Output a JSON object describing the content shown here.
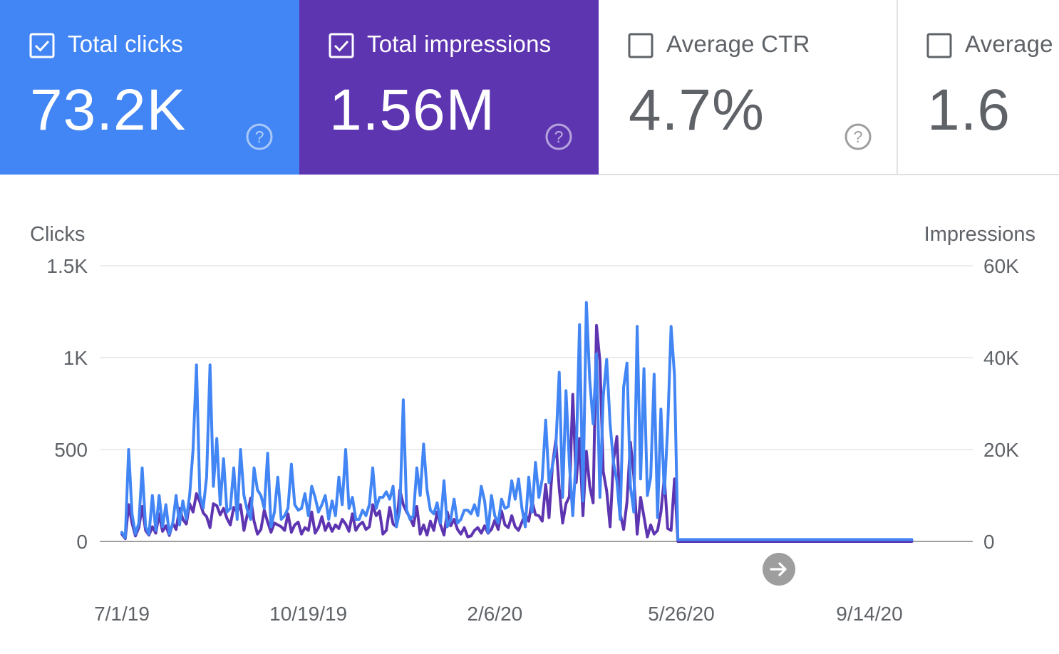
{
  "cards": [
    {
      "label": "Total clicks",
      "value": "73.2K",
      "checked": true,
      "color": "#4285f4",
      "icon": "help-circle-icon"
    },
    {
      "label": "Total impressions",
      "value": "1.56M",
      "checked": true,
      "color": "#5e35b1",
      "icon": "help-circle-icon"
    },
    {
      "label": "Average CTR",
      "value": "4.7%",
      "checked": false,
      "color": "#ffffff",
      "icon": "help-circle-icon"
    },
    {
      "label": "Average",
      "value": "1.6",
      "checked": false,
      "color": "#ffffff"
    }
  ],
  "chart_data": {
    "type": "line",
    "left_axis": {
      "label": "Clicks",
      "ticks": [
        "0",
        "500",
        "1K",
        "1.5K"
      ],
      "tick_values": [
        0,
        500,
        1000,
        1500
      ],
      "ylim": [
        0,
        1500
      ]
    },
    "right_axis": {
      "label": "Impressions",
      "ticks": [
        "0",
        "20K",
        "40K",
        "60K"
      ],
      "tick_values": [
        0,
        20000,
        40000,
        60000
      ],
      "ylim": [
        0,
        60000
      ]
    },
    "x_ticks": [
      "7/1/19",
      "10/19/19",
      "2/6/20",
      "5/26/20",
      "9/14/20"
    ],
    "x_tick_dates": [
      "2019-07-01",
      "2019-10-19",
      "2020-02-06",
      "2020-05-26",
      "2020-09-14"
    ],
    "xlim": [
      "2019-07-01",
      "2020-11-14"
    ],
    "grid": true,
    "series": [
      {
        "axis": "right",
        "color": "#5e35b1",
        "step_days": 2,
        "start": "2019-07-01",
        "values": [
          1600,
          600,
          8000,
          4000,
          1200,
          3000,
          7600,
          2400,
          1400,
          3200,
          1800,
          6000,
          2200,
          3400,
          1300,
          4000,
          2600,
          7200,
          4800,
          3800,
          8200,
          6400,
          10400,
          8600,
          6200,
          5400,
          3000,
          8200,
          7800,
          5800,
          7200,
          5000,
          3600,
          7400,
          6400,
          8000,
          2400,
          5800,
          9400,
          4400,
          1600,
          2600,
          6800,
          4200,
          2000,
          4000,
          3600,
          3200,
          2400,
          6000,
          2000,
          3600,
          4200,
          1600,
          3000,
          2400,
          6400,
          1800,
          3000,
          5400,
          2400,
          4000,
          2200,
          3600,
          2800,
          4800,
          3800,
          2200,
          6000,
          2400,
          3600,
          4200,
          2600,
          3200,
          8000,
          5600,
          6600,
          1600,
          2400,
          7400,
          3800,
          3200,
          11200,
          8000,
          6400,
          5200,
          3400,
          7600,
          1600,
          3600,
          1400,
          4400,
          2400,
          6400,
          3600,
          1400,
          6400,
          3400,
          4800,
          2600,
          1600,
          3000,
          1000,
          1200,
          2400,
          3000,
          1800,
          3400,
          1800,
          2600,
          4600,
          2600,
          6600,
          3600,
          3000,
          5600,
          3200,
          2400,
          4200,
          6000,
          4400,
          8800,
          5800,
          5600,
          4400,
          12400,
          5200,
          16600,
          22000,
          11600,
          4000,
          8200,
          9800,
          32000,
          12800,
          22400,
          5600,
          19600,
          12000,
          8400,
          47000,
          39200,
          15200,
          11000,
          3200,
          17600,
          22800,
          6000,
          2600,
          8600,
          21600,
          14200,
          1600,
          9600,
          5400,
          1000,
          3600,
          1600,
          2400,
          6400,
          14000,
          2800,
          2400,
          13600,
          0,
          0,
          0,
          0,
          0,
          0,
          0,
          0,
          0,
          0,
          0,
          0,
          0,
          0,
          0,
          0,
          0,
          0,
          0,
          0,
          0,
          0,
          0,
          0,
          0,
          0,
          0,
          0,
          0,
          0,
          0,
          0,
          0,
          0,
          0,
          0,
          0,
          0,
          0,
          0,
          0,
          0,
          0,
          0,
          0,
          0,
          0,
          0,
          0,
          0,
          0,
          0,
          0,
          0,
          0,
          0,
          0,
          0,
          0,
          0,
          0,
          0,
          0,
          0,
          0,
          0,
          0,
          0,
          0,
          0
        ]
      },
      {
        "axis": "left",
        "color": "#4285f4",
        "step_days": 2,
        "start": "2019-07-01",
        "values": [
          50,
          20,
          500,
          150,
          40,
          100,
          400,
          80,
          40,
          250,
          60,
          250,
          80,
          200,
          40,
          100,
          250,
          90,
          220,
          120,
          250,
          500,
          960,
          250,
          180,
          350,
          960,
          300,
          560,
          200,
          450,
          160,
          180,
          400,
          120,
          500,
          250,
          170,
          120,
          400,
          280,
          250,
          180,
          480,
          80,
          160,
          350,
          120,
          140,
          180,
          420,
          200,
          170,
          180,
          260,
          140,
          300,
          240,
          160,
          200,
          250,
          120,
          220,
          140,
          350,
          200,
          500,
          180,
          240,
          120,
          120,
          170,
          140,
          200,
          400,
          180,
          240,
          240,
          270,
          230,
          300,
          80,
          170,
          770,
          170,
          120,
          140,
          400,
          250,
          530,
          280,
          170,
          150,
          210,
          100,
          330,
          80,
          120,
          230,
          100,
          120,
          170,
          170,
          150,
          200,
          140,
          300,
          220,
          50,
          250,
          140,
          100,
          230,
          180,
          190,
          330,
          230,
          340,
          180,
          80,
          350,
          160,
          430,
          240,
          340,
          660,
          320,
          410,
          510,
          920,
          240,
          820,
          420,
          140,
          460,
          1180,
          220,
          1300,
          880,
          640,
          1020,
          240,
          790,
          990,
          640,
          430,
          330,
          120,
          840,
          970,
          300,
          160,
          1170,
          340,
          940,
          250,
          350,
          910,
          130,
          720,
          260,
          620,
          1170,
          900,
          10,
          10,
          10,
          10,
          10,
          10,
          10,
          10,
          10,
          10,
          10,
          10,
          10,
          10,
          10,
          10,
          10,
          10,
          10,
          10,
          10,
          10,
          10,
          10,
          10,
          10,
          10,
          10,
          10,
          10,
          10,
          10,
          10,
          10,
          10,
          10,
          10,
          10,
          10,
          10,
          10,
          10,
          10,
          10,
          10,
          10,
          10,
          10,
          10,
          10,
          10,
          10,
          10,
          10,
          10,
          10,
          10,
          10,
          10,
          10,
          10,
          10,
          10,
          10,
          10,
          10,
          10,
          10,
          10,
          10
        ]
      }
    ]
  },
  "nav": {
    "next_icon": "arrow-right-icon"
  }
}
